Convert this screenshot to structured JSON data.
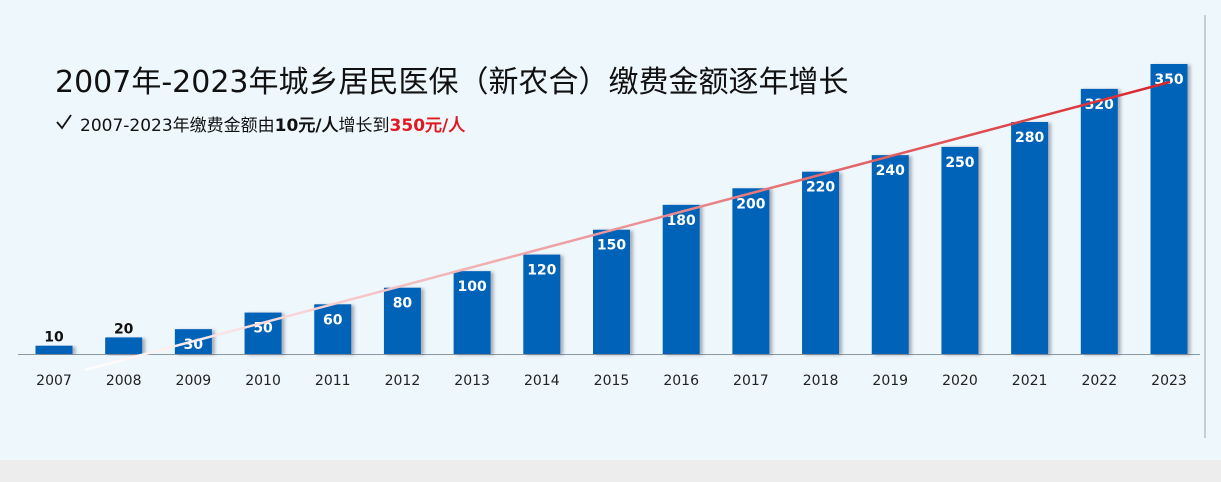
{
  "chart_data": {
    "type": "bar",
    "title": "2007年-2023年城乡居民医保（新农合）缴费金额逐年增长",
    "subtitle": [
      "2007-2023年缴费金额由",
      "10元/人",
      "增长到",
      "350元/人"
    ],
    "categories": [
      "2007",
      "2008",
      "2009",
      "2010",
      "2011",
      "2012",
      "2013",
      "2014",
      "2015",
      "2016",
      "2017",
      "2018",
      "2019",
      "2020",
      "2021",
      "2022",
      "2023"
    ],
    "values": [
      10,
      20,
      30,
      50,
      60,
      80,
      100,
      120,
      150,
      180,
      200,
      220,
      240,
      250,
      280,
      320,
      350
    ],
    "color": "#0563b8"
  }
}
